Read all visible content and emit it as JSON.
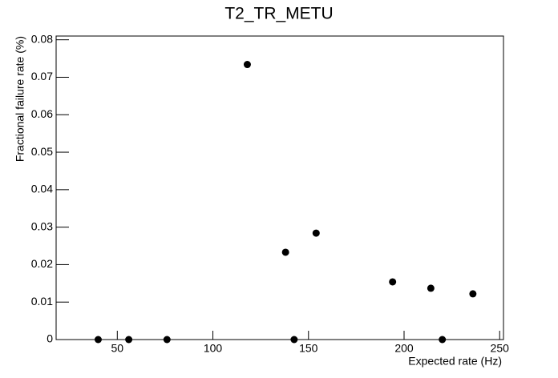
{
  "chart_data": {
    "type": "scatter",
    "title": "T2_TR_METU",
    "x_label": "Expected rate (Hz)",
    "y_label": "Fractional failure rate (%)",
    "x": [
      40,
      56,
      76,
      118,
      138,
      142.5,
      154,
      194,
      214,
      220,
      236
    ],
    "values": [
      0,
      0,
      0,
      0.0734,
      0.0233,
      0,
      0.0284,
      0.0154,
      0.0137,
      0,
      0.0122
    ],
    "color": "#000000",
    "xlim": [
      18,
      252
    ],
    "xticks": [
      50,
      100,
      150,
      200,
      250
    ],
    "ylim": [
      0,
      0.081
    ],
    "yticks": [
      0,
      0.01,
      0.02,
      0.03,
      0.04,
      0.05,
      0.06,
      0.07,
      0.08
    ]
  }
}
